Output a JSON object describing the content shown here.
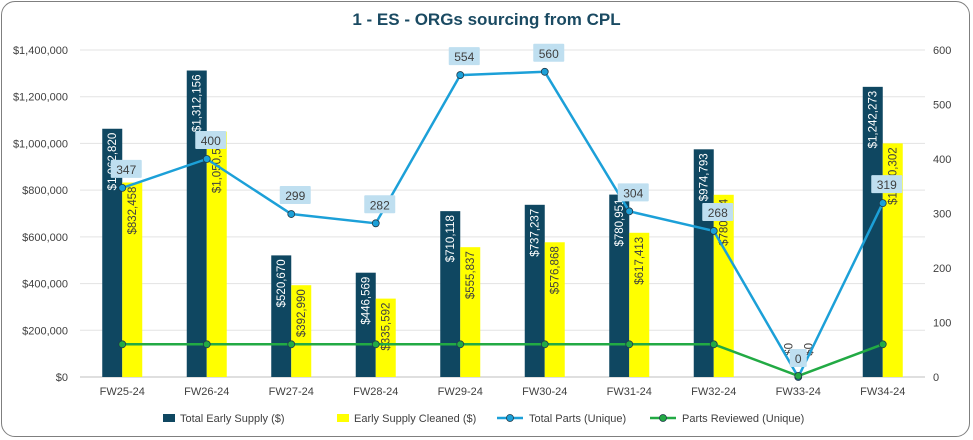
{
  "chart_data": {
    "type": "bar",
    "title": "1 - ES - ORGs sourcing from CPL",
    "categories": [
      "FW25-24",
      "FW26-24",
      "FW27-24",
      "FW28-24",
      "FW29-24",
      "FW30-24",
      "FW31-24",
      "FW32-24",
      "FW33-24",
      "FW34-24"
    ],
    "y_left": {
      "min": 0,
      "max": 1400000,
      "ticks": [
        {
          "value": 0,
          "label": "$0"
        },
        {
          "value": 200000,
          "label": "$200,000"
        },
        {
          "value": 400000,
          "label": "$400,000"
        },
        {
          "value": 600000,
          "label": "$600,000"
        },
        {
          "value": 800000,
          "label": "$800,000"
        },
        {
          "value": 1000000,
          "label": "$1,000,000"
        },
        {
          "value": 1200000,
          "label": "$1,200,000"
        },
        {
          "value": 1400000,
          "label": "$1,400,000"
        }
      ]
    },
    "y_right": {
      "min": 0,
      "max": 600,
      "ticks": [
        {
          "value": 0,
          "label": "0"
        },
        {
          "value": 100,
          "label": "100"
        },
        {
          "value": 200,
          "label": "200"
        },
        {
          "value": 300,
          "label": "300"
        },
        {
          "value": 400,
          "label": "400"
        },
        {
          "value": 500,
          "label": "500"
        },
        {
          "value": 600,
          "label": "600"
        }
      ]
    },
    "grid": true,
    "legend_position": "bottom",
    "bar_series": [
      {
        "name": "Total Early Supply ($)",
        "color": "#0f4761",
        "label_color": "#ffffff",
        "values": [
          1062820,
          1312156,
          520670,
          446569,
          710118,
          737237,
          780951,
          974793,
          0,
          1242273
        ],
        "labels": [
          "$1,062,820",
          "$1,312,156",
          "$520,670",
          "$446,569",
          "$710,118",
          "$737,237",
          "$780,951",
          "$974,793",
          "$0",
          "$1,242,273"
        ]
      },
      {
        "name": "Early Supply Cleaned ($)",
        "color": "#ffff00",
        "label_color": "#404040",
        "values": [
          832458,
          1050573,
          392990,
          335592,
          555837,
          576868,
          617413,
          780114,
          0,
          1000302
        ],
        "labels": [
          "$832,458",
          "$1,050,573",
          "$392,990",
          "$335,592",
          "$555,837",
          "$576,868",
          "$617,413",
          "$780,114",
          "$0",
          "$1,000,302"
        ]
      }
    ],
    "line_series": [
      {
        "name": "Total Parts (Unique)",
        "color": "#1ca0d8",
        "label_bg": "#bfdff0",
        "values": [
          347,
          400,
          299,
          282,
          554,
          560,
          304,
          268,
          0,
          319
        ],
        "labels": [
          "347",
          "400",
          "299",
          "282",
          "554",
          "560",
          "304",
          "268",
          "0",
          "319"
        ],
        "show_labels": true
      },
      {
        "name": "Parts Reviewed (Unique)",
        "color": "#22aa44",
        "values": [
          60,
          60,
          60,
          60,
          60,
          60,
          60,
          60,
          2,
          60
        ],
        "show_labels": false
      }
    ]
  }
}
